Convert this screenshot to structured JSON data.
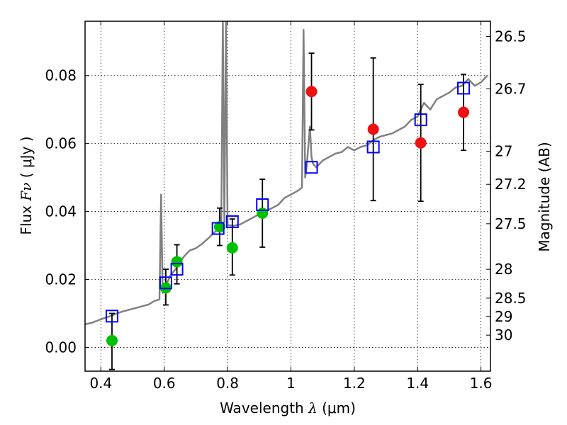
{
  "chart_data": {
    "type": "scatter",
    "xlabel": "Wavelength  λ (μm)",
    "ylabel": "Flux  Fν  ( μJy )",
    "y2label": "Magnitude (AB)",
    "xlim": [
      0.35,
      1.63
    ],
    "ylim": [
      -0.007,
      0.096
    ],
    "xticks": [
      0.4,
      0.6,
      0.8,
      1.0,
      1.2,
      1.4,
      1.6
    ],
    "xtick_labels": [
      "0.4",
      "0.6",
      "0.8",
      "1",
      "1.2",
      "1.4",
      "1.6"
    ],
    "yticks": [
      0.0,
      0.02,
      0.04,
      0.06,
      0.08
    ],
    "ytick_labels": [
      "0.00",
      "0.02",
      "0.04",
      "0.06",
      "0.08"
    ],
    "y2ticks": [
      {
        "label": "26.5",
        "flux": 0.0915
      },
      {
        "label": "26.7",
        "flux": 0.0761
      },
      {
        "label": "27",
        "flux": 0.0577
      },
      {
        "label": "27.2",
        "flux": 0.048
      },
      {
        "label": "27.5",
        "flux": 0.0364
      },
      {
        "label": "28",
        "flux": 0.023
      },
      {
        "label": "28.5",
        "flux": 0.0145
      },
      {
        "label": "29",
        "flux": 0.0091
      },
      {
        "label": "30",
        "flux": 0.0036
      }
    ],
    "grid": true,
    "colors": {
      "model": "#808080",
      "model_photometry": "#0000ff",
      "optical_obs": "#00c000",
      "nir_obs": "#ee1111",
      "error_bars": "#000000"
    },
    "model_spectrum": {
      "x": [
        0.35,
        0.37,
        0.39,
        0.41,
        0.43,
        0.45,
        0.47,
        0.49,
        0.51,
        0.53,
        0.55,
        0.57,
        0.585,
        0.59,
        0.595,
        0.6,
        0.62,
        0.64,
        0.66,
        0.68,
        0.7,
        0.72,
        0.74,
        0.76,
        0.78,
        0.785,
        0.79,
        0.795,
        0.8,
        0.82,
        0.84,
        0.86,
        0.88,
        0.9,
        0.92,
        0.94,
        0.96,
        0.98,
        1.0,
        1.02,
        1.035,
        1.04,
        1.045,
        1.05,
        1.06,
        1.065,
        1.07,
        1.08,
        1.1,
        1.12,
        1.14,
        1.16,
        1.18,
        1.2,
        1.22,
        1.24,
        1.26,
        1.28,
        1.3,
        1.32,
        1.34,
        1.36,
        1.38,
        1.4,
        1.42,
        1.44,
        1.46,
        1.5,
        1.52,
        1.54,
        1.56,
        1.58,
        1.6,
        1.62
      ],
      "y": [
        0.0068,
        0.0072,
        0.0079,
        0.0086,
        0.0092,
        0.01,
        0.0106,
        0.0111,
        0.0116,
        0.0121,
        0.0126,
        0.0137,
        0.0141,
        0.045,
        0.016,
        0.0172,
        0.0212,
        0.0235,
        0.0265,
        0.0285,
        0.0292,
        0.0305,
        0.0322,
        0.034,
        0.0356,
        0.096,
        0.037,
        0.096,
        0.036,
        0.0358,
        0.0362,
        0.0372,
        0.0382,
        0.0392,
        0.04,
        0.041,
        0.042,
        0.044,
        0.045,
        0.046,
        0.047,
        0.0935,
        0.05,
        0.0535,
        0.065,
        0.056,
        0.054,
        0.053,
        0.055,
        0.056,
        0.057,
        0.0575,
        0.059,
        0.058,
        0.059,
        0.0595,
        0.061,
        0.062,
        0.0625,
        0.063,
        0.064,
        0.065,
        0.067,
        0.068,
        0.072,
        0.07,
        0.073,
        0.075,
        0.0765,
        0.077,
        0.079,
        0.077,
        0.078,
        0.08
      ]
    },
    "model_photometry": {
      "x": [
        0.435,
        0.605,
        0.64,
        0.77,
        0.815,
        0.91,
        1.065,
        1.26,
        1.41,
        1.545
      ],
      "y": [
        0.0092,
        0.019,
        0.023,
        0.035,
        0.037,
        0.042,
        0.053,
        0.059,
        0.067,
        0.0763
      ]
    },
    "observed": [
      {
        "x": 0.435,
        "y": 0.002,
        "yerr_low": 0.0085,
        "yerr_high": 0.008,
        "band": "optical"
      },
      {
        "x": 0.605,
        "y": 0.0175,
        "yerr_low": 0.005,
        "yerr_high": 0.0055,
        "band": "optical"
      },
      {
        "x": 0.64,
        "y": 0.0252,
        "yerr_low": 0.0065,
        "yerr_high": 0.005,
        "band": "optical"
      },
      {
        "x": 0.775,
        "y": 0.0355,
        "yerr_low": 0.0055,
        "yerr_high": 0.0055,
        "band": "optical"
      },
      {
        "x": 0.815,
        "y": 0.0293,
        "yerr_low": 0.008,
        "yerr_high": 0.0085,
        "band": "optical"
      },
      {
        "x": 0.91,
        "y": 0.0395,
        "yerr_low": 0.01,
        "yerr_high": 0.01,
        "band": "optical"
      },
      {
        "x": 1.065,
        "y": 0.0753,
        "yerr_low": 0.0113,
        "yerr_high": 0.0113,
        "band": "nir"
      },
      {
        "x": 1.26,
        "y": 0.0642,
        "yerr_low": 0.021,
        "yerr_high": 0.021,
        "band": "nir"
      },
      {
        "x": 1.41,
        "y": 0.0602,
        "yerr_low": 0.0172,
        "yerr_high": 0.0172,
        "band": "nir"
      },
      {
        "x": 1.545,
        "y": 0.0692,
        "yerr_low": 0.0112,
        "yerr_high": 0.0112,
        "band": "nir"
      }
    ]
  }
}
